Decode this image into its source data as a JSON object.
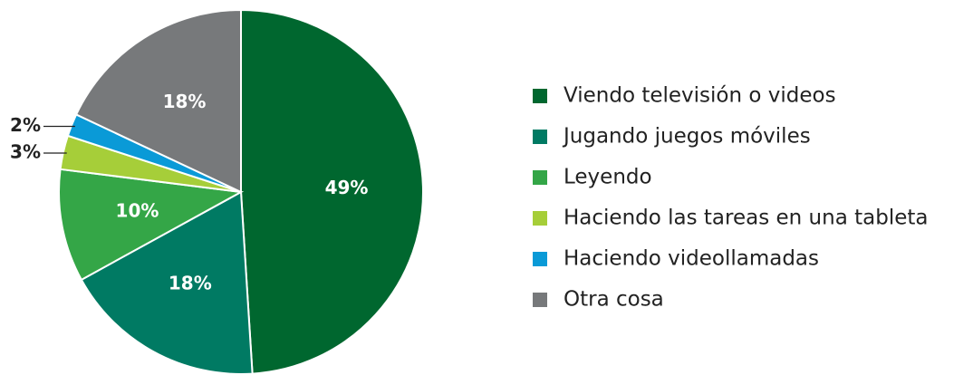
{
  "chart_data": {
    "type": "pie",
    "categories": [
      "Viendo televisión o videos",
      "Jugando juegos móviles",
      "Leyendo",
      "Haciendo las tareas en una tableta",
      "Haciendo videollamadas",
      "Otra cosa"
    ],
    "values": [
      49,
      18,
      10,
      3,
      2,
      18
    ],
    "value_labels": [
      "49%",
      "18%",
      "10%",
      "3%",
      "2%",
      "18%"
    ],
    "colors": [
      "#00672f",
      "#007a63",
      "#34a647",
      "#a6ce39",
      "#0a9ad7",
      "#77797b"
    ],
    "legend": "right"
  }
}
